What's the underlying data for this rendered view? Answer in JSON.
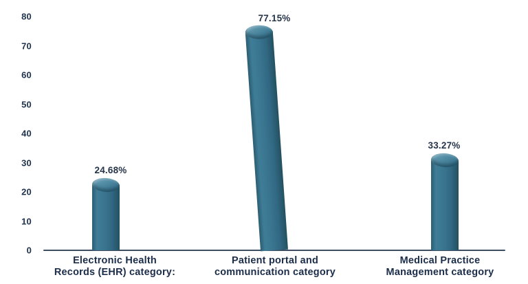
{
  "chart_data": {
    "type": "bar",
    "style": "3d-cylinder",
    "title": "",
    "xlabel": "",
    "ylabel": "",
    "grid": false,
    "legend_position": "none",
    "ylim": [
      0,
      80
    ],
    "yticks": [
      0,
      10,
      20,
      30,
      40,
      50,
      60,
      70,
      80
    ],
    "categories": [
      [
        "Electronic Health",
        "Records (EHR) category:"
      ],
      [
        "Patient portal and",
        "communication category"
      ],
      [
        "Medical Practice",
        "Management category"
      ]
    ],
    "values": [
      24.68,
      77.15,
      33.27
    ],
    "value_labels": [
      "24.68%",
      "77.15%",
      "33.27%"
    ],
    "colors": {
      "bar_main": "#34708a",
      "bar_light": "#74a6ba",
      "bar_dark": "#234e5f",
      "tick_label": "#20334e",
      "value_label": "#263449",
      "category_label": "#1b2d49",
      "axis_line": "#3d4c61"
    }
  }
}
